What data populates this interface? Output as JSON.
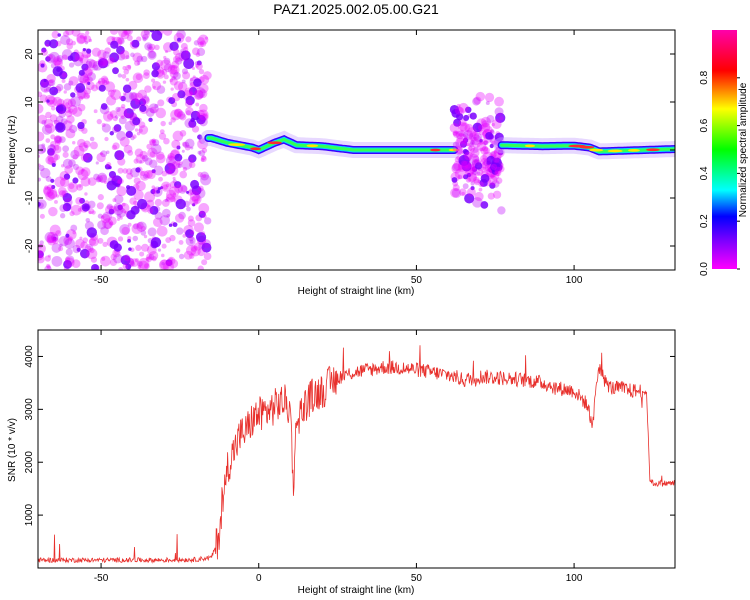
{
  "figure_title": "PAZ1.2025.002.05.00.G21",
  "chart_data": [
    {
      "type": "heatmap",
      "xlabel": "Height of straight line (km)",
      "ylabel": "Frequency (Hz)",
      "xlim": [
        -70,
        132
      ],
      "ylim": [
        -25,
        25
      ],
      "xticks": [
        -50,
        0,
        50,
        100
      ],
      "yticks": [
        -20,
        -10,
        0,
        10,
        20
      ],
      "grid": false,
      "colorbar": {
        "label": "Normalized spectral amplitude",
        "range": [
          0,
          1
        ],
        "ticks": [
          0.0,
          0.2,
          0.4,
          0.6,
          0.8
        ],
        "tick_labels": [
          "0.0",
          "0.2",
          "0.4",
          "0.6",
          "0.8"
        ],
        "colormap": [
          "#ff00ff",
          "#ff0000",
          "#ffff00",
          "#00ff00",
          "#00ffff",
          "#0000ff",
          "#ff00ff"
        ]
      },
      "regions": [
        {
          "x_range": [
            -70,
            -16
          ],
          "description": "noise",
          "f_range": [
            -25,
            25
          ],
          "amplitude": 0.25
        },
        {
          "x_range": [
            -16,
            62
          ],
          "description": "signal",
          "f_center": [
            [
              -15,
              2.5
            ],
            [
              -10,
              1.5
            ],
            [
              -2,
              0.5
            ],
            [
              0,
              0
            ],
            [
              5,
              1.5
            ],
            [
              8,
              2.2
            ],
            [
              12,
              1.0
            ],
            [
              20,
              0.8
            ],
            [
              30,
              0
            ],
            [
              60,
              0
            ]
          ],
          "amplitude": 0.55
        },
        {
          "x_range": [
            62,
            77
          ],
          "description": "scatter",
          "f_range": [
            -18,
            22
          ],
          "amplitude": 0.3
        },
        {
          "x_range": [
            77,
            132
          ],
          "description": "signal",
          "f_center": [
            [
              77,
              1.0
            ],
            [
              90,
              0.8
            ],
            [
              100,
              0.9
            ],
            [
              105,
              0.5
            ],
            [
              108,
              -0.3
            ],
            [
              132,
              0.2
            ]
          ],
          "amplitude": 0.6
        }
      ]
    },
    {
      "type": "line",
      "xlabel": "Height of straight line (km)",
      "ylabel": "SNR (10 * v/v)",
      "xlim": [
        -70,
        132
      ],
      "ylim": [
        0,
        4500
      ],
      "xticks": [
        -50,
        0,
        50,
        100
      ],
      "yticks": [
        1000,
        2000,
        3000,
        4000
      ],
      "grid": false,
      "series": [
        {
          "color": "#e8302c",
          "x": [
            -70,
            -60,
            -50,
            -40,
            -30,
            -20,
            -15,
            -13,
            -11,
            -10,
            -8,
            -6,
            -4,
            -2,
            0,
            2,
            4,
            6,
            8,
            10,
            11,
            12,
            14,
            16,
            18,
            20,
            22,
            25,
            30,
            35,
            40,
            45,
            50,
            55,
            60,
            63,
            65,
            70,
            75,
            80,
            85,
            90,
            95,
            100,
            104,
            106,
            107,
            108,
            110,
            112,
            115,
            118,
            122,
            123,
            124,
            125,
            128,
            132
          ],
          "values": [
            150,
            150,
            150,
            150,
            150,
            160,
            200,
            500,
            1400,
            1900,
            2200,
            2500,
            2600,
            2800,
            2900,
            2950,
            3000,
            3100,
            3150,
            3000,
            1600,
            2800,
            3000,
            3200,
            3300,
            3350,
            3450,
            3600,
            3700,
            3750,
            3800,
            3780,
            3750,
            3700,
            3650,
            3600,
            3550,
            3620,
            3600,
            3580,
            3550,
            3500,
            3400,
            3350,
            3100,
            2700,
            3500,
            3800,
            3500,
            3400,
            3400,
            3350,
            3350,
            3300,
            1700,
            1600,
            1600,
            1600
          ]
        }
      ]
    }
  ]
}
